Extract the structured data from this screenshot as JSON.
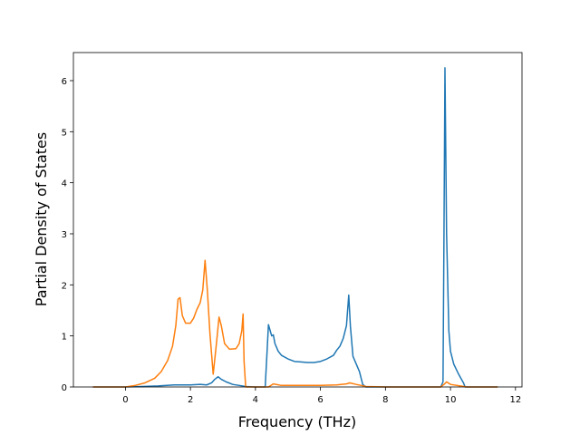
{
  "chart_data": {
    "type": "line",
    "title": "",
    "xlabel": "Frequency (THz)",
    "ylabel": "Partial Density of States",
    "xlim": [
      -1.6,
      12.2
    ],
    "ylim": [
      0,
      6.55
    ],
    "xticks": [
      0,
      2,
      4,
      6,
      8,
      10,
      12
    ],
    "yticks": [
      0,
      1,
      2,
      3,
      4,
      5,
      6
    ],
    "xtick_labels": [
      "0",
      "2",
      "4",
      "6",
      "8",
      "10",
      "12"
    ],
    "ytick_labels": [
      "0",
      "1",
      "2",
      "3",
      "4",
      "5",
      "6"
    ],
    "grid": false,
    "legend": "none",
    "series": [
      {
        "color": "#1f77b4",
        "x": [
          -1.0,
          0.0,
          0.5,
          1.0,
          1.5,
          2.0,
          2.3,
          2.5,
          2.65,
          2.75,
          2.85,
          2.95,
          3.1,
          3.3,
          3.5,
          3.7,
          4.0,
          4.3,
          4.35,
          4.4,
          4.5,
          4.55,
          4.6,
          4.7,
          4.8,
          5.0,
          5.2,
          5.4,
          5.6,
          5.8,
          6.0,
          6.2,
          6.4,
          6.5,
          6.6,
          6.7,
          6.8,
          6.87,
          6.92,
          7.0,
          7.2,
          7.3,
          7.4,
          8.0,
          9.0,
          9.7,
          9.77,
          9.8,
          9.83,
          9.88,
          9.95,
          10.0,
          10.1,
          10.25,
          10.4,
          10.45,
          11.0,
          11.45
        ],
        "y": [
          0,
          0,
          0.01,
          0.02,
          0.04,
          0.04,
          0.05,
          0.04,
          0.08,
          0.15,
          0.2,
          0.15,
          0.1,
          0.05,
          0.03,
          0.01,
          0,
          0,
          0.6,
          1.22,
          1.0,
          1.02,
          0.85,
          0.7,
          0.62,
          0.55,
          0.5,
          0.49,
          0.48,
          0.48,
          0.5,
          0.55,
          0.62,
          0.72,
          0.8,
          0.95,
          1.2,
          1.8,
          1.2,
          0.6,
          0.3,
          0.05,
          0,
          0,
          0,
          0,
          0.1,
          3.0,
          6.25,
          3.0,
          1.1,
          0.7,
          0.45,
          0.25,
          0.08,
          0,
          0,
          0
        ]
      },
      {
        "color": "#ff7f0e",
        "x": [
          -1.0,
          0.0,
          0.3,
          0.6,
          0.9,
          1.1,
          1.3,
          1.45,
          1.55,
          1.62,
          1.68,
          1.75,
          1.85,
          2.0,
          2.1,
          2.2,
          2.3,
          2.38,
          2.45,
          2.52,
          2.6,
          2.7,
          2.8,
          2.88,
          2.95,
          3.05,
          3.2,
          3.4,
          3.5,
          3.58,
          3.62,
          3.65,
          3.7,
          4.0,
          4.4,
          4.55,
          4.8,
          5.5,
          6.0,
          6.5,
          6.8,
          6.9,
          7.1,
          7.4,
          8.0,
          9.7,
          9.8,
          9.88,
          10.0,
          10.3,
          10.5,
          11.0,
          11.45
        ],
        "y": [
          0,
          0,
          0.03,
          0.08,
          0.17,
          0.3,
          0.52,
          0.8,
          1.2,
          1.72,
          1.75,
          1.4,
          1.25,
          1.25,
          1.35,
          1.52,
          1.65,
          1.9,
          2.48,
          1.9,
          1.05,
          0.25,
          0.85,
          1.37,
          1.2,
          0.85,
          0.74,
          0.75,
          0.85,
          1.1,
          1.43,
          0.5,
          0,
          0,
          0,
          0.06,
          0.03,
          0.03,
          0.03,
          0.04,
          0.06,
          0.08,
          0.05,
          0.01,
          0,
          0,
          0.05,
          0.1,
          0.05,
          0.02,
          0,
          0,
          0
        ]
      }
    ]
  }
}
